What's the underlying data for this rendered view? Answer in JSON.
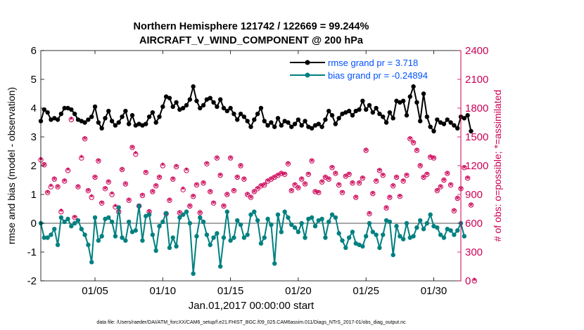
{
  "figure": {
    "title_line1": "Northern Hemisphere 121742 / 122669 = 99.244%",
    "title_line2": "AIRCRAFT_V_WIND_COMPONENT @ 200 hPa",
    "footer": "data file: /Users/raeder/DAI/ATM_forcXX/CAM6_setup/f.e21.FHIST_BGC.f09_025.CAM6assim.011/Diags_NTrS_2017-01/obs_diag_output.nc"
  },
  "chart_data": {
    "type": "line",
    "title": "Northern Hemisphere 121742 / 122669 = 99.244%",
    "subtitle": "AIRCRAFT_V_WIND_COMPONENT @ 200 hPa",
    "xlabel": "Jan.01,2017 00:00:00 start",
    "ylabel_left": "rmse and bias (model - observation)",
    "ylabel_right": "# of obs: o=possible; *=assimilated",
    "xlim": [
      1,
      32
    ],
    "ylim_left": [
      -2,
      6
    ],
    "ylim_right": [
      0,
      2400
    ],
    "x_ticks": [
      {
        "value": 5,
        "label": "01/05"
      },
      {
        "value": 10,
        "label": "01/10"
      },
      {
        "value": 15,
        "label": "01/15"
      },
      {
        "value": 20,
        "label": "01/20"
      },
      {
        "value": 25,
        "label": "01/25"
      },
      {
        "value": 30,
        "label": "01/30"
      }
    ],
    "y_ticks_left": [
      -2,
      -1,
      0,
      1,
      2,
      3,
      4,
      5,
      6
    ],
    "y_ticks_right": [
      0,
      300,
      600,
      900,
      1200,
      1500,
      1800,
      2100,
      2400
    ],
    "zero_line": 0,
    "legend_position": "top-right",
    "series": [
      {
        "name": "rmse grand pr = 3.718",
        "axis": "left",
        "color": "#000000",
        "x_start": 1.0,
        "x_step": 0.25,
        "values": [
          3.55,
          3.95,
          3.85,
          3.6,
          3.65,
          3.6,
          3.8,
          4.0,
          4.0,
          3.95,
          3.8,
          3.6,
          3.55,
          3.5,
          3.6,
          3.7,
          4.05,
          3.5,
          3.3,
          3.65,
          3.9,
          3.55,
          3.4,
          3.5,
          3.7,
          3.9,
          3.45,
          3.75,
          3.4,
          3.45,
          3.4,
          3.45,
          3.7,
          3.85,
          3.5,
          3.7,
          4.05,
          4.4,
          4.35,
          4.05,
          4.2,
          3.95,
          4.0,
          4.1,
          4.3,
          4.75,
          4.25,
          4.0,
          4.1,
          4.3,
          4.35,
          4.2,
          4.05,
          4.3,
          4.0,
          3.9,
          4.0,
          3.8,
          3.6,
          3.8,
          3.7,
          3.55,
          3.35,
          3.6,
          3.8,
          4.0,
          3.55,
          3.4,
          3.5,
          3.35,
          3.65,
          3.4,
          3.55,
          3.5,
          3.35,
          3.45,
          3.6,
          3.4,
          3.55,
          3.35,
          3.3,
          3.4,
          3.45,
          3.35,
          3.6,
          3.9,
          3.75,
          3.45,
          3.65,
          3.8,
          3.85,
          3.9,
          3.75,
          3.9,
          3.95,
          4.25,
          3.95,
          4.1,
          3.85,
          4.0,
          3.8,
          3.7,
          3.5,
          3.85,
          3.65,
          4.25,
          4.2,
          4.25,
          3.75,
          4.4,
          4.75,
          4.2,
          3.55,
          4.5,
          3.7,
          3.35,
          3.2,
          3.6,
          3.5,
          3.45,
          3.6,
          3.5,
          3.4,
          3.3,
          3.7,
          3.65,
          3.75,
          3.2
        ]
      },
      {
        "name": "bias grand pr = -0.24894",
        "axis": "left",
        "color": "#008080",
        "x_start": 1.0,
        "x_step": 0.25,
        "values": [
          0.0,
          -0.5,
          -0.5,
          -0.4,
          -0.2,
          -0.75,
          0.2,
          0.05,
          0.15,
          -0.1,
          0.0,
          0.1,
          -0.2,
          -0.4,
          -0.75,
          -1.35,
          0.2,
          -0.6,
          -0.45,
          0.15,
          0.2,
          0.05,
          -0.45,
          0.55,
          -0.5,
          -0.6,
          0.05,
          -0.3,
          -0.25,
          0.6,
          -0.6,
          0.25,
          0.3,
          -0.4,
          -0.95,
          -0.1,
          0.05,
          0.35,
          -0.85,
          -0.5,
          -0.8,
          0.2,
          0.3,
          0.4,
          0.0,
          -1.75,
          -0.45,
          0.2,
          0.05,
          -0.4,
          -0.75,
          -0.5,
          -0.35,
          -1.5,
          -0.5,
          0.4,
          -0.6,
          -0.5,
          0.1,
          -0.05,
          -0.5,
          -0.4,
          0.3,
          0.4,
          0.1,
          -0.7,
          -0.5,
          0.15,
          -0.05,
          -1.4,
          0.3,
          -0.3,
          0.4,
          0.2,
          -0.05,
          -0.15,
          -0.3,
          0.0,
          -0.5,
          0.15,
          0.2,
          -0.1,
          0.1,
          0.15,
          -0.5,
          0.05,
          0.3,
          0.2,
          -0.35,
          -0.6,
          -0.85,
          -0.5,
          -0.3,
          -0.7,
          -0.75,
          -0.8,
          -0.45,
          0.0,
          -0.3,
          -0.4,
          -0.85,
          -0.4,
          0.1,
          0.05,
          -1.1,
          -0.1,
          -0.45,
          -0.55,
          0.0,
          -0.5,
          -0.45,
          -0.15,
          0.1,
          -0.2,
          0.0,
          0.3,
          -0.1,
          -0.15,
          -0.4,
          -0.5,
          -0.2,
          -0.25,
          -0.4,
          -0.25,
          0.0,
          -0.45
        ]
      },
      {
        "name": "obs possible",
        "axis": "right",
        "color": "#cc0055",
        "marker": "o",
        "x_start": 1.0,
        "x_step": 0.25,
        "values": [
          1260,
          1210,
          920,
          980,
          1060,
          980,
          720,
          1040,
          1150,
          1680,
          660,
          980,
          1280,
          1480,
          940,
          870,
          1080,
          1250,
          810,
          960,
          1030,
          900,
          770,
          720,
          1160,
          1010,
          840,
          1390,
          1320,
          780,
          890,
          1130,
          720,
          930,
          990,
          1080,
          1200,
          700,
          840,
          1060,
          1190,
          710,
          950,
          1150,
          780,
          880,
          1000,
          710,
          1020,
          1220,
          930,
          810,
          1280,
          1100,
          780,
          900,
          1280,
          940,
          1080,
          1200,
          1060,
          900,
          870,
          930,
          960,
          990,
          1000,
          1040,
          1060,
          1080,
          1100,
          1120,
          1110,
          1220,
          940,
          1000,
          970,
          1060,
          1010,
          1110,
          1250,
          930,
          920,
          1030,
          1080,
          1060,
          1180,
          1120,
          1000,
          920,
          1090,
          1110,
          1020,
          870,
          1020,
          1070,
          1360,
          700,
          910,
          1040,
          1150,
          1100,
          760,
          870,
          990,
          1080,
          880,
          1040,
          1100,
          1480,
          1440,
          1360,
          1200,
          1080,
          1110,
          1290,
          1280,
          940,
          980,
          1050,
          1120,
          1000,
          730,
          860,
          960,
          1180,
          1070,
          790,
          0
        ]
      },
      {
        "name": "obs assimilated",
        "axis": "right",
        "color": "#cc0055",
        "marker": "*",
        "x_start": 1.0,
        "x_step": 0.25,
        "values": [
          1260,
          1200,
          910,
          980,
          1050,
          970,
          720,
          1030,
          1150,
          1680,
          650,
          970,
          1280,
          1470,
          930,
          870,
          1070,
          1240,
          800,
          950,
          1020,
          900,
          770,
          710,
          1150,
          1000,
          830,
          1380,
          1320,
          770,
          880,
          1120,
          710,
          920,
          980,
          1070,
          1200,
          690,
          830,
          1050,
          1180,
          700,
          950,
          1150,
          770,
          870,
          990,
          700,
          1010,
          1210,
          920,
          800,
          1270,
          1090,
          770,
          890,
          1270,
          930,
          1070,
          1190,
          1050,
          890,
          860,
          920,
          950,
          980,
          990,
          1030,
          1050,
          1070,
          1090,
          1110,
          1100,
          1210,
          930,
          990,
          960,
          1050,
          1000,
          1100,
          1240,
          920,
          910,
          1020,
          1070,
          1050,
          1170,
          1110,
          990,
          910,
          1080,
          1100,
          1010,
          860,
          1010,
          1060,
          1350,
          690,
          900,
          1030,
          1140,
          1090,
          750,
          860,
          980,
          1070,
          870,
          1030,
          1090,
          1470,
          1430,
          1350,
          1190,
          1070,
          1100,
          1280,
          1270,
          930,
          970,
          1040,
          1110,
          990,
          720,
          850,
          950,
          1170,
          1060,
          780,
          0
        ]
      }
    ]
  }
}
